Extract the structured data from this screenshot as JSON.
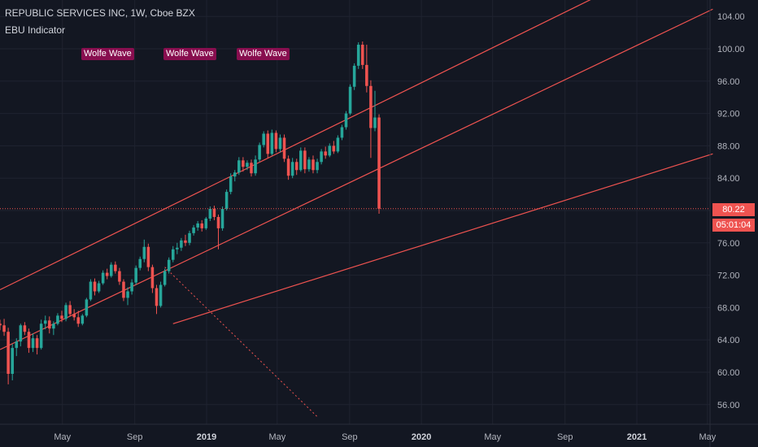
{
  "header": {
    "title": "REPUBLIC SERVICES INC, 1W, Cboe BZX",
    "indicator": "EBU Indicator"
  },
  "badges": [
    "Wolfe Wave",
    "Wolfe Wave",
    "Wolfe Wave"
  ],
  "colors": {
    "background": "#131722",
    "grid": "#1f2330",
    "up": "#26a69a",
    "down": "#ef5350",
    "trendline": "#ef5350",
    "badge": "#880e4f"
  },
  "price_tag": {
    "price": "80.22",
    "countdown": "05:01:04"
  },
  "chart_data": {
    "type": "candlestick",
    "interval": "1W",
    "ylim": [
      52,
      105
    ],
    "xlim": [
      "2018-01-15",
      "2021-05-15"
    ],
    "y_ticks": [
      "56.00",
      "60.00",
      "64.00",
      "68.00",
      "72.00",
      "76.00",
      "80.00",
      "84.00",
      "88.00",
      "92.00",
      "96.00",
      "100.00",
      "104.00"
    ],
    "x_ticks": [
      {
        "label": "May",
        "date": "2018-05-01"
      },
      {
        "label": "Sep",
        "date": "2018-09-01"
      },
      {
        "label": "2019",
        "date": "2019-01-01",
        "bold": true
      },
      {
        "label": "May",
        "date": "2019-05-01"
      },
      {
        "label": "Sep",
        "date": "2019-09-01"
      },
      {
        "label": "2020",
        "date": "2020-01-01",
        "bold": true
      },
      {
        "label": "May",
        "date": "2020-05-01"
      },
      {
        "label": "Sep",
        "date": "2020-09-01"
      },
      {
        "label": "2021",
        "date": "2021-01-01",
        "bold": true
      },
      {
        "label": "May",
        "date": "2021-05-01"
      }
    ],
    "last_price": 80.22,
    "candles_start": "2018-01-15",
    "candles_ohlc": [
      [
        66.0,
        66.5,
        65.2,
        65.8
      ],
      [
        65.8,
        66.6,
        64.5,
        65.0
      ],
      [
        65.0,
        65.5,
        58.5,
        59.8
      ],
      [
        59.8,
        63.5,
        59.0,
        63.0
      ],
      [
        63.0,
        64.2,
        62.0,
        63.8
      ],
      [
        63.8,
        66.0,
        63.2,
        65.8
      ],
      [
        65.8,
        66.2,
        64.6,
        65.0
      ],
      [
        65.0,
        65.4,
        62.4,
        63.0
      ],
      [
        63.0,
        64.8,
        62.5,
        64.2
      ],
      [
        64.2,
        64.6,
        62.2,
        63.0
      ],
      [
        63.0,
        66.5,
        62.8,
        66.0
      ],
      [
        66.0,
        67.0,
        65.3,
        66.4
      ],
      [
        66.4,
        66.9,
        64.8,
        65.4
      ],
      [
        65.4,
        66.3,
        64.6,
        66.0
      ],
      [
        66.0,
        67.3,
        65.8,
        67.0
      ],
      [
        67.0,
        67.6,
        66.2,
        66.6
      ],
      [
        66.6,
        68.6,
        66.3,
        68.3
      ],
      [
        68.3,
        68.8,
        66.9,
        67.2
      ],
      [
        67.2,
        67.8,
        66.4,
        66.8
      ],
      [
        66.8,
        67.6,
        65.6,
        66.0
      ],
      [
        66.0,
        67.2,
        65.8,
        67.0
      ],
      [
        67.0,
        69.2,
        66.8,
        69.0
      ],
      [
        69.0,
        71.5,
        68.8,
        71.2
      ],
      [
        71.2,
        71.6,
        69.5,
        70.0
      ],
      [
        70.0,
        71.3,
        69.8,
        71.0
      ],
      [
        71.0,
        72.6,
        70.8,
        72.3
      ],
      [
        72.3,
        72.8,
        71.5,
        71.9
      ],
      [
        71.9,
        73.6,
        71.7,
        73.3
      ],
      [
        73.3,
        73.7,
        72.2,
        72.5
      ],
      [
        72.5,
        72.9,
        70.8,
        71.2
      ],
      [
        71.2,
        71.5,
        68.8,
        69.2
      ],
      [
        69.2,
        70.5,
        68.3,
        70.0
      ],
      [
        70.0,
        71.5,
        69.6,
        71.1
      ],
      [
        71.1,
        73.2,
        70.8,
        72.9
      ],
      [
        72.9,
        74.3,
        72.6,
        74.0
      ],
      [
        74.0,
        76.4,
        73.6,
        75.5
      ],
      [
        75.5,
        75.9,
        72.5,
        73.0
      ],
      [
        73.0,
        73.3,
        69.8,
        70.4
      ],
      [
        70.4,
        70.8,
        67.2,
        68.2
      ],
      [
        68.2,
        71.2,
        68.0,
        70.8
      ],
      [
        70.8,
        72.8,
        70.6,
        72.5
      ],
      [
        72.5,
        74.2,
        72.2,
        73.9
      ],
      [
        73.9,
        75.6,
        73.6,
        75.2
      ],
      [
        75.2,
        76.0,
        74.6,
        75.4
      ],
      [
        75.4,
        76.6,
        75.0,
        76.3
      ],
      [
        76.3,
        77.0,
        75.6,
        76.0
      ],
      [
        76.0,
        77.5,
        75.7,
        77.2
      ],
      [
        77.2,
        78.2,
        76.9,
        77.9
      ],
      [
        77.9,
        78.7,
        77.5,
        78.4
      ],
      [
        78.4,
        78.8,
        77.4,
        77.8
      ],
      [
        77.8,
        79.2,
        77.6,
        79.0
      ],
      [
        79.0,
        80.5,
        78.7,
        80.2
      ],
      [
        80.2,
        80.6,
        78.8,
        79.2
      ],
      [
        79.2,
        79.5,
        75.2,
        77.8
      ],
      [
        77.8,
        80.5,
        77.5,
        80.2
      ],
      [
        80.2,
        82.6,
        80.0,
        82.3
      ],
      [
        82.3,
        84.6,
        82.0,
        84.2
      ],
      [
        84.2,
        85.0,
        83.6,
        84.7
      ],
      [
        84.7,
        86.6,
        84.4,
        86.2
      ],
      [
        86.2,
        86.6,
        84.8,
        85.4
      ],
      [
        85.4,
        86.2,
        85.0,
        85.9
      ],
      [
        85.9,
        86.3,
        84.2,
        84.6
      ],
      [
        84.6,
        86.8,
        84.3,
        86.3
      ],
      [
        86.3,
        88.4,
        86.0,
        88.1
      ],
      [
        88.1,
        89.8,
        87.8,
        89.5
      ],
      [
        89.5,
        89.9,
        86.5,
        87.0
      ],
      [
        87.0,
        90.0,
        86.8,
        89.6
      ],
      [
        89.6,
        89.9,
        87.2,
        87.6
      ],
      [
        87.6,
        89.4,
        87.2,
        89.0
      ],
      [
        89.0,
        89.4,
        86.0,
        86.4
      ],
      [
        86.4,
        86.8,
        83.8,
        84.3
      ],
      [
        84.3,
        86.5,
        84.0,
        86.0
      ],
      [
        86.0,
        86.4,
        84.4,
        85.0
      ],
      [
        85.0,
        87.8,
        84.8,
        87.4
      ],
      [
        87.4,
        87.8,
        84.6,
        85.1
      ],
      [
        85.1,
        86.6,
        84.8,
        86.3
      ],
      [
        86.3,
        86.8,
        84.6,
        85.0
      ],
      [
        85.0,
        86.4,
        84.6,
        86.0
      ],
      [
        86.0,
        87.6,
        85.7,
        87.3
      ],
      [
        87.3,
        87.9,
        86.4,
        86.8
      ],
      [
        86.8,
        88.3,
        86.6,
        88.0
      ],
      [
        88.0,
        88.6,
        87.0,
        87.3
      ],
      [
        87.3,
        89.3,
        87.1,
        89.0
      ],
      [
        89.0,
        90.6,
        88.7,
        90.3
      ],
      [
        90.3,
        92.3,
        90.0,
        92.0
      ],
      [
        92.0,
        95.6,
        91.8,
        95.3
      ],
      [
        95.3,
        98.2,
        94.9,
        97.9
      ],
      [
        97.9,
        100.8,
        97.5,
        100.5
      ],
      [
        100.5,
        100.9,
        97.5,
        98.0
      ],
      [
        98.0,
        100.5,
        94.6,
        95.4
      ],
      [
        95.4,
        96.1,
        86.5,
        90.2
      ],
      [
        90.2,
        94.8,
        89.8,
        91.5
      ],
      [
        91.5,
        91.9,
        79.6,
        80.22
      ]
    ],
    "trendlines": [
      {
        "from": [
          "2018-01-15",
          70.2
        ],
        "to": [
          "2021-05-10",
          113.5
        ]
      },
      {
        "from": [
          "2018-01-15",
          62.8
        ],
        "to": [
          "2021-05-10",
          104.9
        ]
      },
      {
        "from": [
          "2018-11-05",
          66.0
        ],
        "to": [
          "2021-05-10",
          87.0
        ]
      },
      {
        "from": [
          "2018-10-22",
          73.0
        ],
        "to": [
          "2019-07-08",
          54.5
        ],
        "style": "dotted"
      }
    ]
  }
}
